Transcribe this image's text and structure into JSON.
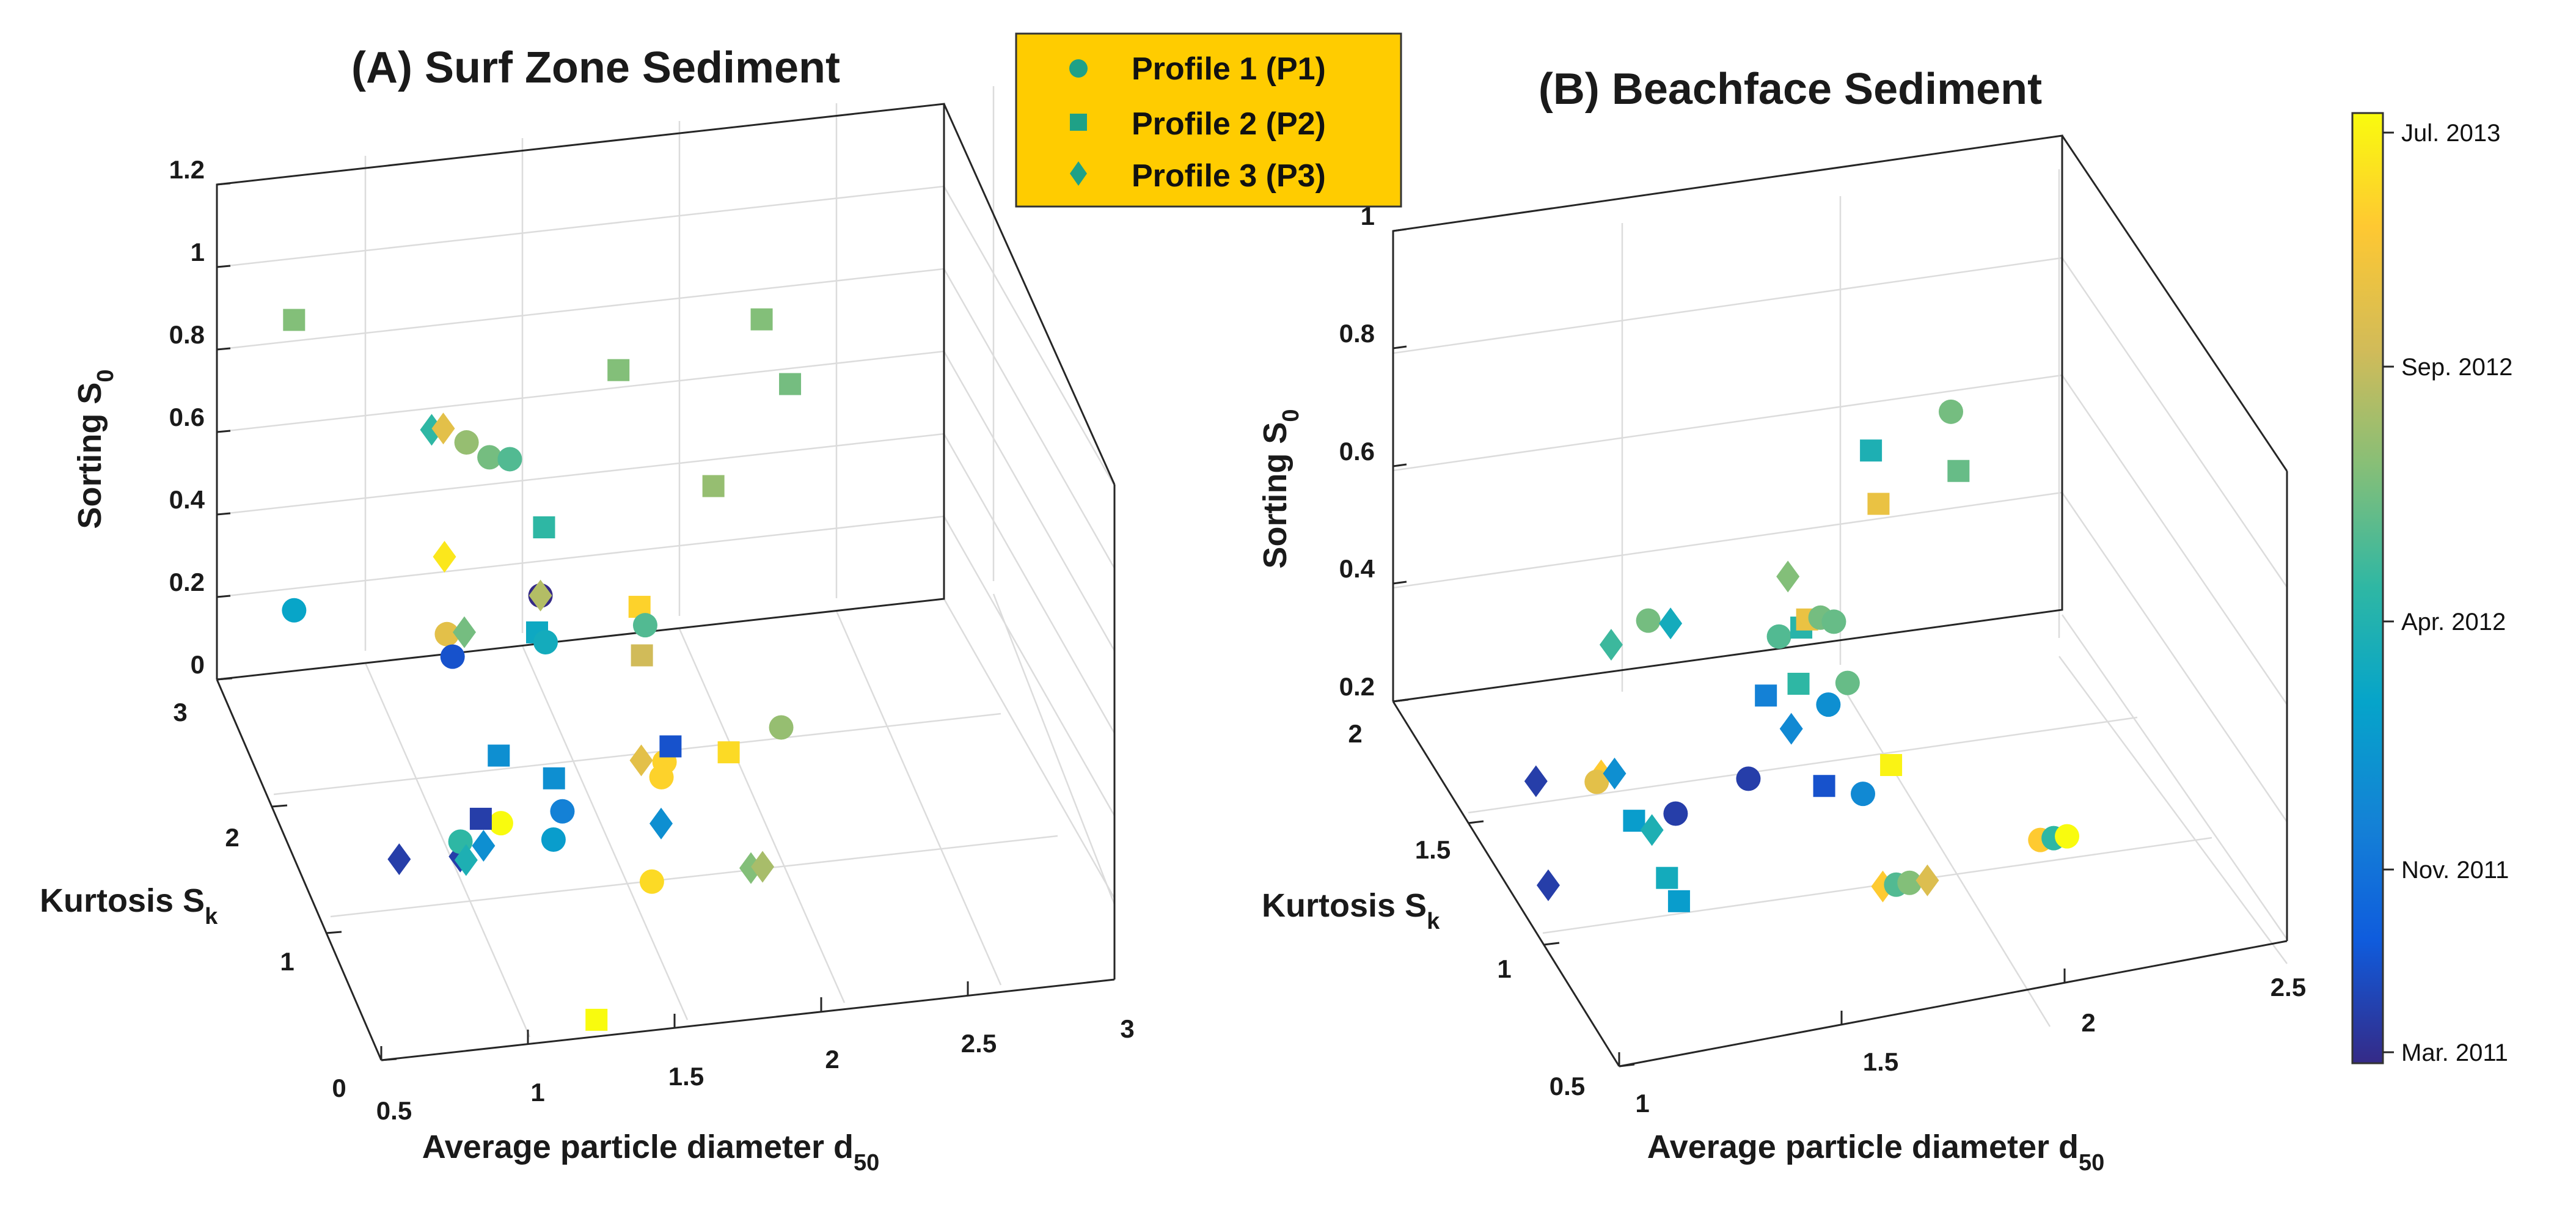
{
  "chart_data": [
    {
      "type": "scatter3d",
      "title": "(A) Surf Zone Sediment",
      "xlabel": "Average particle diameter d",
      "xlabel_sub": "50",
      "ylabel": "Kurtosis S",
      "ylabel_sub": "k",
      "zlabel": "Sorting S",
      "zlabel_sub": "0",
      "xlim": [
        0.5,
        3
      ],
      "ylim": [
        0,
        3
      ],
      "zlim": [
        0,
        1.2
      ],
      "x_ticks": [
        "0.5",
        "1",
        "1.5",
        "2",
        "2.5",
        "3"
      ],
      "y_ticks": [
        "0",
        "1",
        "2",
        "3"
      ],
      "z_ticks": [
        "0",
        "0.2",
        "0.4",
        "0.6",
        "0.8",
        "1",
        "1.2"
      ],
      "points": [
        {
          "profile": "P2",
          "x": 0.69,
          "y": 2.6,
          "z": 0.98,
          "t": 0.62
        },
        {
          "profile": "P1",
          "x": 0.53,
          "y": 1.75,
          "z": 0.55,
          "t": 0.38
        },
        {
          "profile": "P3",
          "x": 1.05,
          "y": 2.0,
          "z": 0.87,
          "t": 0.5
        },
        {
          "profile": "P3",
          "x": 1.09,
          "y": 2.0,
          "z": 0.87,
          "t": 0.8
        },
        {
          "profile": "P1",
          "x": 1.17,
          "y": 2.0,
          "z": 0.83,
          "t": 0.65
        },
        {
          "profile": "P1",
          "x": 1.23,
          "y": 1.9,
          "z": 0.82,
          "t": 0.6
        },
        {
          "profile": "P1",
          "x": 1.3,
          "y": 1.9,
          "z": 0.81,
          "t": 0.55
        },
        {
          "profile": "P3",
          "x": 1.0,
          "y": 1.5,
          "z": 0.72,
          "t": 0.95
        },
        {
          "profile": "P2",
          "x": 1.38,
          "y": 1.7,
          "z": 0.7,
          "t": 0.5
        },
        {
          "profile": "P1",
          "x": 0.98,
          "y": 1.35,
          "z": 0.58,
          "t": 0.8
        },
        {
          "profile": "P3",
          "x": 1.04,
          "y": 1.35,
          "z": 0.58,
          "t": 0.6
        },
        {
          "profile": "P1",
          "x": 0.99,
          "y": 1.3,
          "z": 0.54,
          "t": 0.1
        },
        {
          "profile": "P1",
          "x": 1.33,
          "y": 1.5,
          "z": 0.6,
          "t": 0.0
        },
        {
          "profile": "P3",
          "x": 1.33,
          "y": 1.5,
          "z": 0.6,
          "t": 0.7
        },
        {
          "profile": "P2",
          "x": 1.29,
          "y": 1.35,
          "z": 0.56,
          "t": 0.4
        },
        {
          "profile": "P1",
          "x": 1.31,
          "y": 1.3,
          "z": 0.55,
          "t": 0.42
        },
        {
          "profile": "P2",
          "x": 1.73,
          "y": 2.2,
          "z": 0.9,
          "t": 0.62
        },
        {
          "profile": "P2",
          "x": 1.68,
          "y": 1.55,
          "z": 0.53,
          "t": 0.9
        },
        {
          "profile": "P1",
          "x": 1.69,
          "y": 1.5,
          "z": 0.5,
          "t": 0.55
        },
        {
          "profile": "P2",
          "x": 1.66,
          "y": 1.4,
          "z": 0.46,
          "t": 0.75
        },
        {
          "profile": "P2",
          "x": 2.0,
          "y": 1.9,
          "z": 0.69,
          "t": 0.65
        },
        {
          "profile": "P2",
          "x": 2.26,
          "y": 2.4,
          "z": 0.92,
          "t": 0.62
        },
        {
          "profile": "P2",
          "x": 2.32,
          "y": 2.2,
          "z": 0.82,
          "t": 0.6
        },
        {
          "profile": "P2",
          "x": 1.13,
          "y": 1.2,
          "z": 0.32,
          "t": 0.3
        },
        {
          "profile": "P1",
          "x": 1.1,
          "y": 1.0,
          "z": 0.22,
          "t": 1.0
        },
        {
          "profile": "P2",
          "x": 1.04,
          "y": 1.05,
          "z": 0.22,
          "t": 0.05
        },
        {
          "profile": "P2",
          "x": 1.32,
          "y": 1.2,
          "z": 0.25,
          "t": 0.3
        },
        {
          "profile": "P1",
          "x": 1.33,
          "y": 1.1,
          "z": 0.2,
          "t": 0.25
        },
        {
          "profile": "P1",
          "x": 1.29,
          "y": 1.05,
          "z": 0.15,
          "t": 0.35
        },
        {
          "profile": "P3",
          "x": 0.75,
          "y": 1.0,
          "z": 0.16,
          "t": 0.05
        },
        {
          "profile": "P3",
          "x": 0.96,
          "y": 1.0,
          "z": 0.15,
          "t": 0.05
        },
        {
          "profile": "P1",
          "x": 0.97,
          "y": 1.05,
          "z": 0.17,
          "t": 0.5
        },
        {
          "profile": "P3",
          "x": 0.98,
          "y": 1.0,
          "z": 0.14,
          "t": 0.45
        },
        {
          "profile": "P3",
          "x": 1.04,
          "y": 1.0,
          "z": 0.17,
          "t": 0.3
        },
        {
          "profile": "P3",
          "x": 1.62,
          "y": 1.2,
          "z": 0.27,
          "t": 0.8
        },
        {
          "profile": "P1",
          "x": 1.7,
          "y": 1.2,
          "z": 0.26,
          "t": 0.9
        },
        {
          "profile": "P2",
          "x": 1.73,
          "y": 1.25,
          "z": 0.28,
          "t": 0.1
        },
        {
          "profile": "P1",
          "x": 1.68,
          "y": 1.15,
          "z": 0.24,
          "t": 0.9
        },
        {
          "profile": "P3",
          "x": 1.66,
          "y": 1.05,
          "z": 0.16,
          "t": 0.3
        },
        {
          "profile": "P2",
          "x": 1.93,
          "y": 1.25,
          "z": 0.25,
          "t": 0.92
        },
        {
          "profile": "P1",
          "x": 2.12,
          "y": 1.3,
          "z": 0.28,
          "t": 0.65
        },
        {
          "profile": "P1",
          "x": 1.6,
          "y": 0.9,
          "z": 0.07,
          "t": 0.92
        },
        {
          "profile": "P3",
          "x": 1.95,
          "y": 0.95,
          "z": 0.06,
          "t": 0.62
        },
        {
          "profile": "P3",
          "x": 1.99,
          "y": 0.95,
          "z": 0.06,
          "t": 0.68
        },
        {
          "profile": "P2",
          "x": 1.24,
          "y": 0.0,
          "z": 0.04,
          "t": 1.0
        }
      ]
    },
    {
      "type": "scatter3d",
      "title": "(B) Beachface Sediment",
      "xlabel": "Average particle diameter d",
      "xlabel_sub": "50",
      "ylabel": "Kurtosis S",
      "ylabel_sub": "k",
      "zlabel": "Sorting S",
      "zlabel_sub": "0",
      "xlim": [
        1,
        2.5
      ],
      "ylim": [
        0.5,
        2
      ],
      "zlim": [
        0.2,
        1
      ],
      "x_ticks": [
        "1",
        "1.5",
        "2",
        "2.5"
      ],
      "y_ticks": [
        "0.5",
        "1",
        "1.5",
        "2"
      ],
      "z_ticks": [
        "0.2",
        "0.4",
        "0.6",
        "0.8",
        "1"
      ],
      "points": [
        {
          "profile": "P1",
          "x": 2.2,
          "y": 1.85,
          "z": 0.63,
          "t": 0.6
        },
        {
          "profile": "P2",
          "x": 2.2,
          "y": 1.8,
          "z": 0.55,
          "t": 0.58
        },
        {
          "profile": "P2",
          "x": 1.97,
          "y": 1.7,
          "z": 0.65,
          "t": 0.45
        },
        {
          "profile": "P2",
          "x": 1.97,
          "y": 1.65,
          "z": 0.58,
          "t": 0.82
        },
        {
          "profile": "P3",
          "x": 1.32,
          "y": 1.5,
          "z": 0.47,
          "t": 0.52
        },
        {
          "profile": "P1",
          "x": 1.42,
          "y": 1.55,
          "z": 0.48,
          "t": 0.6
        },
        {
          "profile": "P3",
          "x": 1.47,
          "y": 1.55,
          "z": 0.47,
          "t": 0.42
        },
        {
          "profile": "P3",
          "x": 1.75,
          "y": 1.6,
          "z": 0.5,
          "t": 0.62
        },
        {
          "profile": "P3",
          "x": 1.05,
          "y": 1.2,
          "z": 0.39,
          "t": 0.05
        },
        {
          "profile": "P3",
          "x": 1.23,
          "y": 1.3,
          "z": 0.34,
          "t": 0.88
        },
        {
          "profile": "P1",
          "x": 1.22,
          "y": 1.3,
          "z": 0.33,
          "t": 0.8
        },
        {
          "profile": "P3",
          "x": 1.26,
          "y": 1.3,
          "z": 0.34,
          "t": 0.3
        },
        {
          "profile": "P2",
          "x": 1.27,
          "y": 1.2,
          "z": 0.3,
          "t": 0.35
        },
        {
          "profile": "P3",
          "x": 1.31,
          "y": 1.2,
          "z": 0.28,
          "t": 0.45
        },
        {
          "profile": "P2",
          "x": 1.31,
          "y": 1.1,
          "z": 0.24,
          "t": 0.42
        },
        {
          "profile": "P1",
          "x": 1.38,
          "y": 1.25,
          "z": 0.28,
          "t": 0.05
        },
        {
          "profile": "P1",
          "x": 1.56,
          "y": 1.3,
          "z": 0.3,
          "t": 0.05
        },
        {
          "profile": "P1",
          "x": 1.73,
          "y": 1.6,
          "z": 0.4,
          "t": 0.55
        },
        {
          "profile": "P2",
          "x": 1.78,
          "y": 1.6,
          "z": 0.41,
          "t": 0.48
        },
        {
          "profile": "P2",
          "x": 1.81,
          "y": 1.65,
          "z": 0.4,
          "t": 0.82
        },
        {
          "profile": "P1",
          "x": 1.84,
          "y": 1.65,
          "z": 0.4,
          "t": 0.6
        },
        {
          "profile": "P1",
          "x": 1.87,
          "y": 1.65,
          "z": 0.39,
          "t": 0.58
        },
        {
          "profile": "P2",
          "x": 1.65,
          "y": 1.45,
          "z": 0.37,
          "t": 0.25
        },
        {
          "profile": "P2",
          "x": 1.74,
          "y": 1.5,
          "z": 0.36,
          "t": 0.5
        },
        {
          "profile": "P1",
          "x": 1.79,
          "y": 1.45,
          "z": 0.34,
          "t": 0.3
        },
        {
          "profile": "P1",
          "x": 1.85,
          "y": 1.5,
          "z": 0.35,
          "t": 0.58
        },
        {
          "profile": "P3",
          "x": 1.69,
          "y": 1.4,
          "z": 0.33,
          "t": 0.28
        },
        {
          "profile": "P2",
          "x": 1.73,
          "y": 1.3,
          "z": 0.27,
          "t": 0.1
        },
        {
          "profile": "P1",
          "x": 1.8,
          "y": 1.25,
          "z": 0.27,
          "t": 0.28
        },
        {
          "profile": "P2",
          "x": 1.88,
          "y": 1.3,
          "z": 0.29,
          "t": 0.98
        },
        {
          "profile": "P3",
          "x": 1.76,
          "y": 1.0,
          "z": 0.22,
          "t": 0.88
        },
        {
          "profile": "P1",
          "x": 1.79,
          "y": 1.0,
          "z": 0.22,
          "t": 0.55
        },
        {
          "profile": "P1",
          "x": 1.82,
          "y": 1.0,
          "z": 0.22,
          "t": 0.62
        },
        {
          "profile": "P3",
          "x": 1.86,
          "y": 1.0,
          "z": 0.22,
          "t": 0.78
        },
        {
          "profile": "P1",
          "x": 2.13,
          "y": 1.05,
          "z": 0.24,
          "t": 0.88
        },
        {
          "profile": "P1",
          "x": 2.16,
          "y": 1.05,
          "z": 0.24,
          "t": 0.5
        },
        {
          "profile": "P1",
          "x": 2.19,
          "y": 1.05,
          "z": 0.24,
          "t": 1.0
        },
        {
          "profile": "P3",
          "x": 1.01,
          "y": 1.0,
          "z": 0.3,
          "t": 0.05
        },
        {
          "profile": "P2",
          "x": 1.32,
          "y": 1.05,
          "z": 0.22,
          "t": 0.35
        }
      ]
    }
  ],
  "legend": {
    "items": [
      {
        "label": "Profile 1 (P1)",
        "marker": "circle"
      },
      {
        "label": "Profile 2 (P2)",
        "marker": "square"
      },
      {
        "label": "Profile 3 (P3)",
        "marker": "diamond"
      }
    ],
    "background": "#FFCC00",
    "marker_color": "#1FA187"
  },
  "colorbar": {
    "labels": [
      "Jul. 2013",
      "Sep. 2012",
      "Apr. 2012",
      "Nov. 2011",
      "Mar. 2011"
    ],
    "label_positions": [
      1.0,
      0.74,
      0.5,
      0.23,
      0.0
    ],
    "colormap": [
      "#352A87",
      "#0F5CDD",
      "#1481D6",
      "#06A4CA",
      "#2EB7A4",
      "#87BF77",
      "#D1BB59",
      "#FEC832",
      "#F9FB0E"
    ]
  }
}
